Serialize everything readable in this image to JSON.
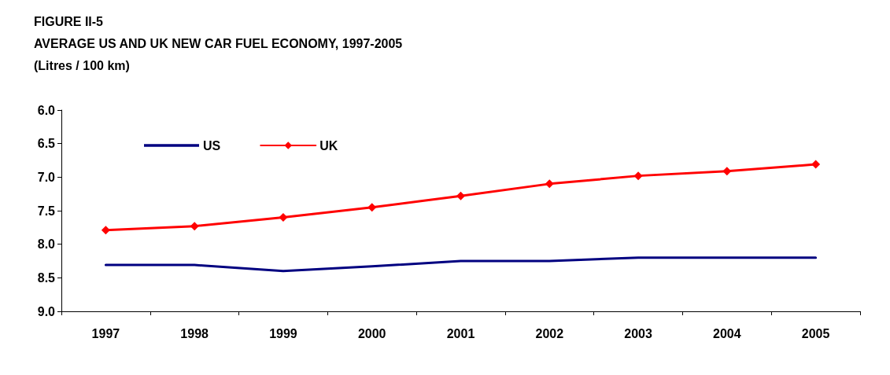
{
  "chart_data": {
    "type": "line",
    "title": "FIGURE II-5",
    "subtitle": "AVERAGE US AND UK NEW CAR FUEL ECONOMY, 1997-2005",
    "ylabel": "(Litres / 100 km)",
    "categories": [
      "1997",
      "1998",
      "1999",
      "2000",
      "2001",
      "2002",
      "2003",
      "2004",
      "2005"
    ],
    "series": [
      {
        "name": "US",
        "color": "#000080",
        "marker": "none",
        "values": [
          8.31,
          8.31,
          8.4,
          8.33,
          8.25,
          8.25,
          8.2,
          8.2,
          8.2
        ]
      },
      {
        "name": "UK",
        "color": "#ff0000",
        "marker": "diamond",
        "values": [
          7.79,
          7.73,
          7.6,
          7.45,
          7.28,
          7.1,
          6.98,
          6.91,
          6.81
        ]
      }
    ],
    "ylim": [
      9.0,
      6.0
    ],
    "yticks": [
      {
        "value": 6,
        "label": "6.0"
      },
      {
        "value": 6.5,
        "label": "6.5"
      },
      {
        "value": 7,
        "label": "7.0"
      },
      {
        "value": 7.5,
        "label": "7.5"
      },
      {
        "value": 8,
        "label": "8.0"
      },
      {
        "value": 8.5,
        "label": "8.5"
      },
      {
        "value": 9,
        "label": "9.0"
      }
    ],
    "grid": false,
    "legend": "top left",
    "line_style": "solid"
  }
}
